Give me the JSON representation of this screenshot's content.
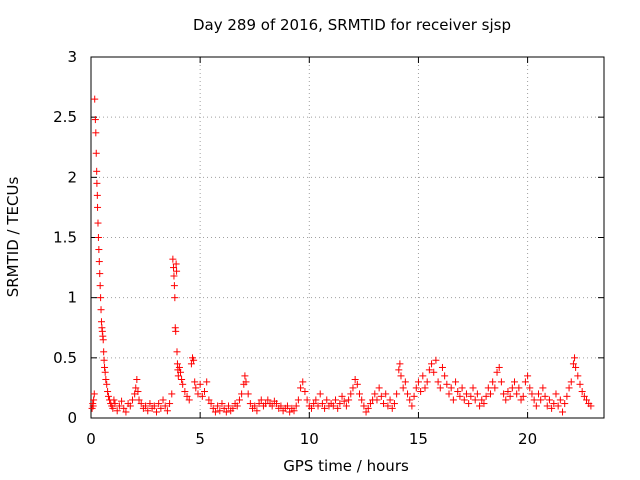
{
  "chart_data": {
    "type": "scatter",
    "title": "Day 289 of 2016, SRMTID for receiver sjsp",
    "xlabel": "GPS time / hours",
    "ylabel": "SRMTID / TECUs",
    "xlim": [
      0,
      23.5
    ],
    "ylim": [
      0,
      3
    ],
    "xticks": [
      0,
      5,
      10,
      15,
      20
    ],
    "xtick_labels": [
      "0",
      "5",
      "10",
      "15",
      "20"
    ],
    "yticks": [
      0,
      0.5,
      1,
      1.5,
      2,
      2.5,
      3
    ],
    "ytick_labels": [
      "0",
      "0.5",
      "1",
      "1.5",
      "2",
      "2.5",
      "3"
    ],
    "grid": true,
    "marker": "+",
    "color": "#ff0000",
    "series": [
      {
        "name": "SRMTID",
        "points": [
          [
            0.05,
            0.08
          ],
          [
            0.08,
            0.12
          ],
          [
            0.1,
            0.1
          ],
          [
            0.12,
            0.15
          ],
          [
            0.15,
            0.2
          ],
          [
            0.17,
            2.65
          ],
          [
            0.2,
            2.48
          ],
          [
            0.22,
            2.37
          ],
          [
            0.24,
            2.2
          ],
          [
            0.26,
            2.05
          ],
          [
            0.27,
            1.95
          ],
          [
            0.29,
            1.85
          ],
          [
            0.3,
            1.75
          ],
          [
            0.32,
            1.62
          ],
          [
            0.34,
            1.5
          ],
          [
            0.36,
            1.4
          ],
          [
            0.38,
            1.3
          ],
          [
            0.4,
            1.2
          ],
          [
            0.42,
            1.1
          ],
          [
            0.44,
            1.0
          ],
          [
            0.46,
            0.9
          ],
          [
            0.48,
            0.8
          ],
          [
            0.5,
            0.75
          ],
          [
            0.52,
            0.72
          ],
          [
            0.54,
            0.68
          ],
          [
            0.56,
            0.65
          ],
          [
            0.58,
            0.55
          ],
          [
            0.6,
            0.48
          ],
          [
            0.62,
            0.42
          ],
          [
            0.65,
            0.38
          ],
          [
            0.68,
            0.32
          ],
          [
            0.72,
            0.28
          ],
          [
            0.76,
            0.22
          ],
          [
            0.8,
            0.18
          ],
          [
            0.85,
            0.15
          ],
          [
            0.9,
            0.12
          ],
          [
            0.95,
            0.1
          ],
          [
            1.0,
            0.08
          ],
          [
            1.05,
            0.15
          ],
          [
            1.1,
            0.12
          ],
          [
            1.2,
            0.06
          ],
          [
            1.3,
            0.1
          ],
          [
            1.4,
            0.14
          ],
          [
            1.5,
            0.08
          ],
          [
            1.6,
            0.05
          ],
          [
            1.7,
            0.12
          ],
          [
            1.8,
            0.1
          ],
          [
            1.9,
            0.15
          ],
          [
            2.0,
            0.2
          ],
          [
            2.05,
            0.25
          ],
          [
            2.1,
            0.32
          ],
          [
            2.15,
            0.22
          ],
          [
            2.2,
            0.15
          ],
          [
            2.3,
            0.12
          ],
          [
            2.4,
            0.08
          ],
          [
            2.5,
            0.1
          ],
          [
            2.6,
            0.06
          ],
          [
            2.7,
            0.12
          ],
          [
            2.8,
            0.08
          ],
          [
            2.9,
            0.1
          ],
          [
            3.0,
            0.05
          ],
          [
            3.1,
            0.12
          ],
          [
            3.2,
            0.08
          ],
          [
            3.3,
            0.15
          ],
          [
            3.4,
            0.1
          ],
          [
            3.5,
            0.06
          ],
          [
            3.6,
            0.12
          ],
          [
            3.7,
            0.2
          ],
          [
            3.75,
            1.32
          ],
          [
            3.78,
            1.25
          ],
          [
            3.8,
            1.18
          ],
          [
            3.82,
            1.1
          ],
          [
            3.84,
            1.0
          ],
          [
            3.86,
            0.75
          ],
          [
            3.88,
            0.72
          ],
          [
            3.9,
            1.28
          ],
          [
            3.92,
            1.22
          ],
          [
            3.94,
            0.55
          ],
          [
            3.96,
            0.45
          ],
          [
            3.98,
            0.4
          ],
          [
            4.0,
            0.35
          ],
          [
            4.05,
            0.42
          ],
          [
            4.1,
            0.38
          ],
          [
            4.15,
            0.32
          ],
          [
            4.2,
            0.28
          ],
          [
            4.3,
            0.22
          ],
          [
            4.4,
            0.18
          ],
          [
            4.5,
            0.15
          ],
          [
            4.6,
            0.45
          ],
          [
            4.65,
            0.5
          ],
          [
            4.7,
            0.48
          ],
          [
            4.75,
            0.3
          ],
          [
            4.8,
            0.25
          ],
          [
            4.9,
            0.2
          ],
          [
            5.0,
            0.28
          ],
          [
            5.1,
            0.18
          ],
          [
            5.2,
            0.22
          ],
          [
            5.3,
            0.3
          ],
          [
            5.4,
            0.15
          ],
          [
            5.5,
            0.12
          ],
          [
            5.6,
            0.08
          ],
          [
            5.7,
            0.05
          ],
          [
            5.8,
            0.1
          ],
          [
            5.9,
            0.06
          ],
          [
            6.0,
            0.12
          ],
          [
            6.1,
            0.08
          ],
          [
            6.2,
            0.05
          ],
          [
            6.3,
            0.1
          ],
          [
            6.4,
            0.06
          ],
          [
            6.5,
            0.08
          ],
          [
            6.6,
            0.12
          ],
          [
            6.7,
            0.1
          ],
          [
            6.8,
            0.15
          ],
          [
            6.9,
            0.2
          ],
          [
            7.0,
            0.28
          ],
          [
            7.05,
            0.35
          ],
          [
            7.1,
            0.3
          ],
          [
            7.2,
            0.2
          ],
          [
            7.3,
            0.12
          ],
          [
            7.4,
            0.08
          ],
          [
            7.5,
            0.1
          ],
          [
            7.6,
            0.06
          ],
          [
            7.7,
            0.12
          ],
          [
            7.8,
            0.15
          ],
          [
            7.9,
            0.1
          ],
          [
            8.0,
            0.12
          ],
          [
            8.1,
            0.15
          ],
          [
            8.2,
            0.12
          ],
          [
            8.3,
            0.1
          ],
          [
            8.4,
            0.14
          ],
          [
            8.5,
            0.12
          ],
          [
            8.6,
            0.08
          ],
          [
            8.7,
            0.1
          ],
          [
            8.8,
            0.06
          ],
          [
            8.9,
            0.08
          ],
          [
            9.0,
            0.1
          ],
          [
            9.1,
            0.05
          ],
          [
            9.2,
            0.08
          ],
          [
            9.3,
            0.06
          ],
          [
            9.4,
            0.1
          ],
          [
            9.5,
            0.15
          ],
          [
            9.6,
            0.25
          ],
          [
            9.7,
            0.3
          ],
          [
            9.8,
            0.22
          ],
          [
            9.9,
            0.15
          ],
          [
            10.0,
            0.1
          ],
          [
            10.1,
            0.08
          ],
          [
            10.2,
            0.12
          ],
          [
            10.3,
            0.15
          ],
          [
            10.4,
            0.1
          ],
          [
            10.5,
            0.2
          ],
          [
            10.6,
            0.12
          ],
          [
            10.7,
            0.08
          ],
          [
            10.8,
            0.15
          ],
          [
            10.9,
            0.1
          ],
          [
            11.0,
            0.12
          ],
          [
            11.1,
            0.1
          ],
          [
            11.2,
            0.15
          ],
          [
            11.3,
            0.08
          ],
          [
            11.4,
            0.12
          ],
          [
            11.5,
            0.18
          ],
          [
            11.6,
            0.14
          ],
          [
            11.7,
            0.1
          ],
          [
            11.8,
            0.15
          ],
          [
            11.9,
            0.2
          ],
          [
            12.0,
            0.25
          ],
          [
            12.1,
            0.32
          ],
          [
            12.2,
            0.28
          ],
          [
            12.3,
            0.2
          ],
          [
            12.4,
            0.15
          ],
          [
            12.5,
            0.1
          ],
          [
            12.6,
            0.05
          ],
          [
            12.7,
            0.08
          ],
          [
            12.8,
            0.12
          ],
          [
            12.9,
            0.15
          ],
          [
            13.0,
            0.2
          ],
          [
            13.1,
            0.15
          ],
          [
            13.2,
            0.25
          ],
          [
            13.3,
            0.18
          ],
          [
            13.4,
            0.12
          ],
          [
            13.5,
            0.2
          ],
          [
            13.6,
            0.1
          ],
          [
            13.7,
            0.15
          ],
          [
            13.8,
            0.08
          ],
          [
            13.9,
            0.12
          ],
          [
            14.0,
            0.2
          ],
          [
            14.1,
            0.4
          ],
          [
            14.15,
            0.45
          ],
          [
            14.2,
            0.35
          ],
          [
            14.3,
            0.25
          ],
          [
            14.4,
            0.3
          ],
          [
            14.5,
            0.2
          ],
          [
            14.6,
            0.15
          ],
          [
            14.7,
            0.1
          ],
          [
            14.8,
            0.18
          ],
          [
            14.9,
            0.25
          ],
          [
            15.0,
            0.3
          ],
          [
            15.1,
            0.22
          ],
          [
            15.2,
            0.35
          ],
          [
            15.3,
            0.25
          ],
          [
            15.4,
            0.3
          ],
          [
            15.5,
            0.4
          ],
          [
            15.6,
            0.45
          ],
          [
            15.7,
            0.38
          ],
          [
            15.8,
            0.48
          ],
          [
            15.9,
            0.3
          ],
          [
            16.0,
            0.25
          ],
          [
            16.1,
            0.42
          ],
          [
            16.2,
            0.35
          ],
          [
            16.3,
            0.28
          ],
          [
            16.4,
            0.2
          ],
          [
            16.5,
            0.25
          ],
          [
            16.6,
            0.15
          ],
          [
            16.7,
            0.3
          ],
          [
            16.8,
            0.22
          ],
          [
            16.9,
            0.18
          ],
          [
            17.0,
            0.25
          ],
          [
            17.1,
            0.15
          ],
          [
            17.2,
            0.2
          ],
          [
            17.3,
            0.12
          ],
          [
            17.4,
            0.18
          ],
          [
            17.5,
            0.25
          ],
          [
            17.6,
            0.15
          ],
          [
            17.7,
            0.2
          ],
          [
            17.8,
            0.1
          ],
          [
            17.9,
            0.15
          ],
          [
            18.0,
            0.12
          ],
          [
            18.1,
            0.18
          ],
          [
            18.2,
            0.25
          ],
          [
            18.3,
            0.2
          ],
          [
            18.4,
            0.3
          ],
          [
            18.5,
            0.25
          ],
          [
            18.6,
            0.38
          ],
          [
            18.7,
            0.42
          ],
          [
            18.8,
            0.3
          ],
          [
            18.9,
            0.2
          ],
          [
            19.0,
            0.15
          ],
          [
            19.1,
            0.22
          ],
          [
            19.2,
            0.18
          ],
          [
            19.3,
            0.25
          ],
          [
            19.4,
            0.3
          ],
          [
            19.5,
            0.2
          ],
          [
            19.6,
            0.25
          ],
          [
            19.7,
            0.15
          ],
          [
            19.8,
            0.18
          ],
          [
            19.9,
            0.3
          ],
          [
            20.0,
            0.35
          ],
          [
            20.1,
            0.25
          ],
          [
            20.2,
            0.2
          ],
          [
            20.3,
            0.15
          ],
          [
            20.4,
            0.1
          ],
          [
            20.5,
            0.2
          ],
          [
            20.6,
            0.15
          ],
          [
            20.7,
            0.25
          ],
          [
            20.8,
            0.18
          ],
          [
            20.9,
            0.1
          ],
          [
            21.0,
            0.15
          ],
          [
            21.1,
            0.08
          ],
          [
            21.2,
            0.12
          ],
          [
            21.3,
            0.2
          ],
          [
            21.4,
            0.1
          ],
          [
            21.5,
            0.15
          ],
          [
            21.6,
            0.05
          ],
          [
            21.7,
            0.12
          ],
          [
            21.8,
            0.18
          ],
          [
            21.9,
            0.25
          ],
          [
            22.0,
            0.3
          ],
          [
            22.1,
            0.45
          ],
          [
            22.15,
            0.5
          ],
          [
            22.2,
            0.42
          ],
          [
            22.3,
            0.35
          ],
          [
            22.4,
            0.28
          ],
          [
            22.5,
            0.22
          ],
          [
            22.6,
            0.18
          ],
          [
            22.7,
            0.15
          ],
          [
            22.8,
            0.12
          ],
          [
            22.9,
            0.1
          ]
        ]
      }
    ]
  }
}
